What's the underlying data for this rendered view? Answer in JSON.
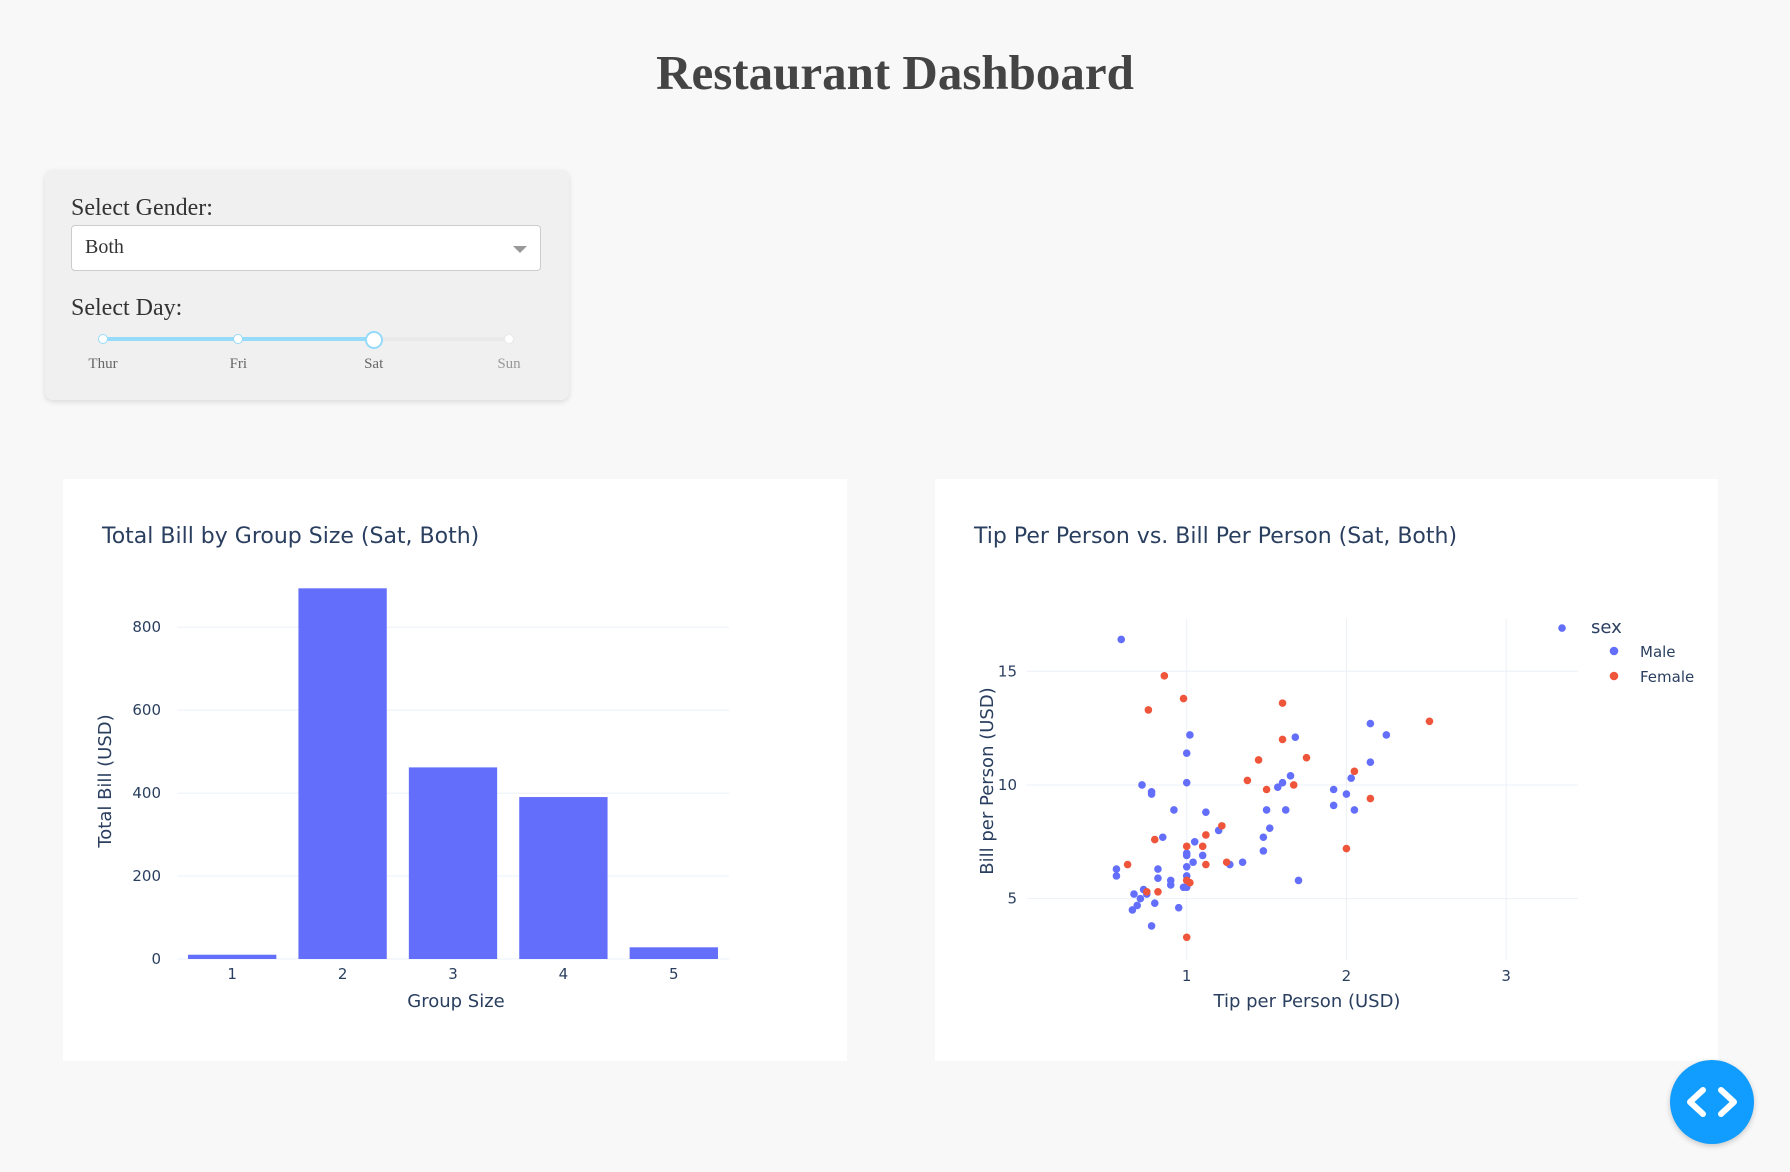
{
  "page": {
    "title": "Restaurant Dashboard"
  },
  "controls": {
    "gender_label": "Select Gender:",
    "gender_value": "Both",
    "day_label": "Select Day:",
    "day_marks": [
      "Thur",
      "Fri",
      "Sat",
      "Sun"
    ],
    "day_selected": "Sat"
  },
  "icons": {
    "dropdown": "chevron-down-icon",
    "dev_tools": "code-icon"
  },
  "colors": {
    "male": "#636efa",
    "female": "#ef553b",
    "accent": "#119dff",
    "slider": "#96dbfa"
  },
  "chart_data": [
    {
      "type": "bar",
      "title": "Total Bill by Group Size (Sat, Both)",
      "xlabel": "Group Size",
      "ylabel": "Total Bill (USD)",
      "categories": [
        "1",
        "2",
        "3",
        "4",
        "5"
      ],
      "values": [
        10.3,
        893.6,
        461.9,
        390.4,
        28.2
      ],
      "ylim": [
        0,
        945
      ],
      "yticks": [
        0,
        200,
        400,
        600,
        800
      ],
      "color": "#636efa",
      "grid": true
    },
    {
      "type": "scatter",
      "title": "Tip Per Person vs. Bill Per Person (Sat, Both)",
      "xlabel": "Tip per Person (USD)",
      "ylabel": "Bill per Person (USD)",
      "xlim": [
        0.0,
        3.45
      ],
      "ylim": [
        2.3,
        17.3
      ],
      "xticks": [
        1,
        2,
        3
      ],
      "yticks": [
        5,
        10,
        15
      ],
      "legend": {
        "title": "sex",
        "placement": "top-right"
      },
      "series": [
        {
          "name": "Male",
          "color": "#636efa",
          "points": [
            [
              0.59,
              16.4
            ],
            [
              3.35,
              16.9
            ],
            [
              0.56,
              6.3
            ],
            [
              0.56,
              6.0
            ],
            [
              0.67,
              5.2
            ],
            [
              0.71,
              5.0
            ],
            [
              0.73,
              5.4
            ],
            [
              0.66,
              4.5
            ],
            [
              0.69,
              4.7
            ],
            [
              0.72,
              10.0
            ],
            [
              0.78,
              9.7
            ],
            [
              0.78,
              9.6
            ],
            [
              0.75,
              5.2
            ],
            [
              0.78,
              3.8
            ],
            [
              0.8,
              4.8
            ],
            [
              0.82,
              5.9
            ],
            [
              0.82,
              6.3
            ],
            [
              0.85,
              7.7
            ],
            [
              0.9,
              5.8
            ],
            [
              0.9,
              5.6
            ],
            [
              0.92,
              8.9
            ],
            [
              0.95,
              4.6
            ],
            [
              0.98,
              5.5
            ],
            [
              1.0,
              6.0
            ],
            [
              1.0,
              6.4
            ],
            [
              1.0,
              6.9
            ],
            [
              1.0,
              7.0
            ],
            [
              1.0,
              5.5
            ],
            [
              1.0,
              10.1
            ],
            [
              1.0,
              11.4
            ],
            [
              1.02,
              12.2
            ],
            [
              1.04,
              6.6
            ],
            [
              1.05,
              7.5
            ],
            [
              1.1,
              6.9
            ],
            [
              1.12,
              8.8
            ],
            [
              1.2,
              8.0
            ],
            [
              1.27,
              6.5
            ],
            [
              1.35,
              6.6
            ],
            [
              1.48,
              7.7
            ],
            [
              1.48,
              7.1
            ],
            [
              1.5,
              8.9
            ],
            [
              1.52,
              8.1
            ],
            [
              1.57,
              9.9
            ],
            [
              1.6,
              10.1
            ],
            [
              1.62,
              8.9
            ],
            [
              1.65,
              10.4
            ],
            [
              1.68,
              12.1
            ],
            [
              1.7,
              5.8
            ],
            [
              1.92,
              9.1
            ],
            [
              1.92,
              9.8
            ],
            [
              2.0,
              9.6
            ],
            [
              2.03,
              10.3
            ],
            [
              2.05,
              8.9
            ],
            [
              2.15,
              12.7
            ],
            [
              2.15,
              11.0
            ],
            [
              2.25,
              12.2
            ]
          ]
        },
        {
          "name": "Female",
          "color": "#ef553b",
          "points": [
            [
              0.63,
              6.5
            ],
            [
              0.75,
              5.3
            ],
            [
              0.76,
              13.3
            ],
            [
              0.8,
              7.6
            ],
            [
              0.82,
              5.3
            ],
            [
              0.86,
              14.8
            ],
            [
              0.98,
              13.8
            ],
            [
              1.0,
              5.8
            ],
            [
              1.0,
              7.3
            ],
            [
              1.0,
              3.3
            ],
            [
              1.02,
              5.7
            ],
            [
              1.1,
              7.3
            ],
            [
              1.12,
              7.8
            ],
            [
              1.12,
              6.5
            ],
            [
              1.22,
              8.2
            ],
            [
              1.25,
              6.6
            ],
            [
              1.38,
              10.2
            ],
            [
              1.45,
              11.1
            ],
            [
              1.5,
              9.8
            ],
            [
              1.6,
              12.0
            ],
            [
              1.6,
              13.6
            ],
            [
              1.67,
              10.0
            ],
            [
              1.75,
              11.2
            ],
            [
              2.0,
              7.2
            ],
            [
              2.05,
              10.6
            ],
            [
              2.15,
              9.4
            ],
            [
              2.52,
              12.8
            ]
          ]
        }
      ]
    }
  ]
}
